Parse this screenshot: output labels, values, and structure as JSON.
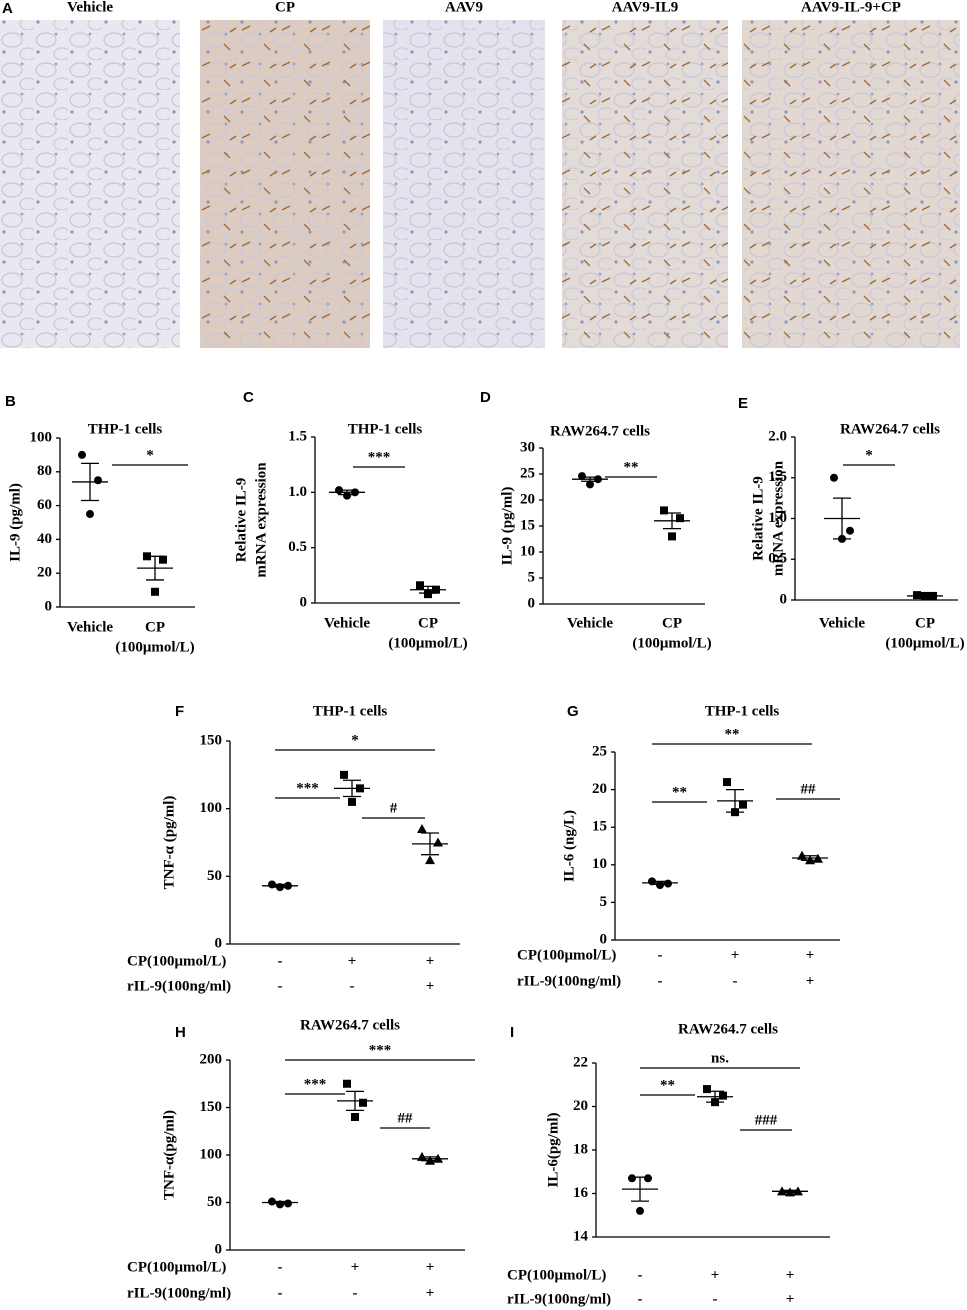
{
  "panel_a": {
    "label": "A",
    "images": [
      "Vehicle",
      "CP",
      "AAV9",
      "AAV9-IL9",
      "AAV9-IL-9+CP"
    ]
  },
  "chart_data": [
    {
      "type": "dotplot",
      "panel": "B",
      "title": "THP-1 cells",
      "ylabel": [
        "IL-9 (pg/ml)"
      ],
      "categories": [
        [
          "Vehicle"
        ],
        [
          "CP",
          "(100μmol/L)"
        ]
      ],
      "points": [
        [
          90,
          75,
          55
        ],
        [
          30,
          28,
          9
        ]
      ],
      "means": [
        74,
        23
      ],
      "errors": [
        11,
        7
      ],
      "ylim": [
        0,
        100
      ],
      "yticks": [
        0,
        20,
        40,
        60,
        80,
        100
      ],
      "annotations": [
        "*"
      ]
    },
    {
      "type": "dotplot",
      "panel": "C",
      "title": "THP-1 cells",
      "ylabel": [
        "Relative IL-9",
        "mRNA expression"
      ],
      "categories": [
        [
          "Vehicle"
        ],
        [
          "CP",
          "(100μmol/L)"
        ]
      ],
      "points": [
        [
          1.02,
          1.0,
          0.97
        ],
        [
          0.16,
          0.12,
          0.08
        ]
      ],
      "means": [
        1.0,
        0.12
      ],
      "errors": [
        0.02,
        0.03
      ],
      "ylim": [
        0,
        1.5
      ],
      "yticks": [
        0,
        0.5,
        {
          "value": 1,
          "label": "1.0"
        },
        1.5
      ],
      "annotations": [
        "***"
      ]
    },
    {
      "type": "dotplot",
      "panel": "D",
      "title": "RAW264.7 cells",
      "ylabel": [
        "IL-9 (pg/ml)"
      ],
      "categories": [
        [
          "Vehicle"
        ],
        [
          "CP",
          "(100μmol/L)"
        ]
      ],
      "points": [
        [
          24.6,
          24,
          23
        ],
        [
          18,
          16.5,
          13
        ]
      ],
      "means": [
        24,
        16
      ],
      "errors": [
        0.4,
        1.5
      ],
      "ylim": [
        0,
        30
      ],
      "yticks": [
        0,
        5,
        10,
        15,
        20,
        25,
        30
      ],
      "annotations": [
        "**"
      ]
    },
    {
      "type": "dotplot",
      "panel": "E",
      "title": "RAW264.7 cells",
      "ylabel": [
        "Relative IL-9",
        "mRNA expression"
      ],
      "categories": [
        [
          "Vehicle"
        ],
        [
          "CP",
          "(100μmol/L)"
        ]
      ],
      "points": [
        [
          1.5,
          0.85,
          0.75
        ],
        [
          0.06,
          0.05,
          0.05
        ]
      ],
      "means": [
        1.0,
        0.05
      ],
      "errors": [
        0.25,
        0.01
      ],
      "ylim": [
        0,
        2
      ],
      "yticks": [
        0,
        0.5,
        {
          "value": 1,
          "label": "1.0"
        },
        1.5,
        {
          "value": 2,
          "label": "2.0"
        }
      ],
      "annotations": [
        "*"
      ]
    },
    {
      "type": "dotplot",
      "panel": "F",
      "title": "THP-1 cells",
      "ylabel": [
        "TNF-α (pg/ml)"
      ],
      "conditions": [
        {
          "label": "CP(100μmol/L)",
          "marks": [
            "-",
            "+",
            "+"
          ]
        },
        {
          "label": "rIL-9(100ng/ml)",
          "marks": [
            "-",
            "-",
            "+"
          ]
        }
      ],
      "points": [
        [
          44,
          43,
          42
        ],
        [
          125,
          115,
          105
        ],
        [
          85,
          75,
          62
        ]
      ],
      "means": [
        43,
        115,
        74
      ],
      "errors": [
        1,
        6,
        8
      ],
      "ylim": [
        0,
        150
      ],
      "yticks": [
        0,
        50,
        100,
        150
      ],
      "annotations": [
        "***",
        "#",
        "*"
      ]
    },
    {
      "type": "dotplot",
      "panel": "G",
      "title": "THP-1 cells",
      "ylabel": [
        "IL-6 (ng/L)"
      ],
      "conditions": [
        {
          "label": "CP(100μmol/L)",
          "marks": [
            "-",
            "+",
            "+"
          ]
        },
        {
          "label": "rIL-9(100ng/ml)",
          "marks": [
            "-",
            "-",
            "+"
          ]
        }
      ],
      "points": [
        [
          7.8,
          7.5,
          7.3
        ],
        [
          21,
          18,
          17
        ],
        [
          11.2,
          10.8,
          10.6
        ]
      ],
      "means": [
        7.6,
        18.5,
        10.9
      ],
      "errors": [
        0.2,
        1.5,
        0.3
      ],
      "ylim": [
        0,
        25
      ],
      "yticks": [
        0,
        5,
        10,
        15,
        20,
        25
      ],
      "annotations": [
        "**",
        "##",
        "**"
      ]
    },
    {
      "type": "dotplot",
      "panel": "H",
      "title": "RAW264.7 cells",
      "ylabel": [
        "TNF-α(pg/ml)"
      ],
      "conditions": [
        {
          "label": "CP(100μmol/L)",
          "marks": [
            "-",
            "+",
            "+"
          ]
        },
        {
          "label": "rIL-9(100ng/ml)",
          "marks": [
            "-",
            "-",
            "+"
          ]
        }
      ],
      "points": [
        [
          51,
          49,
          48
        ],
        [
          175,
          155,
          140
        ],
        [
          98,
          96,
          94
        ]
      ],
      "means": [
        50,
        157,
        96
      ],
      "errors": [
        1,
        10,
        2
      ],
      "ylim": [
        0,
        200
      ],
      "yticks": [
        0,
        50,
        100,
        150,
        200
      ],
      "annotations": [
        "***",
        "##",
        "***"
      ]
    },
    {
      "type": "dotplot",
      "panel": "I",
      "title": "RAW264.7 cells",
      "ylabel": [
        "IL-6(pg/ml)"
      ],
      "conditions": [
        {
          "label": "CP(100μmol/L)",
          "marks": [
            "-",
            "+",
            "+"
          ]
        },
        {
          "label": "rIL-9(100ng/ml)",
          "marks": [
            "-",
            "-",
            "+"
          ]
        }
      ],
      "points": [
        [
          16.7,
          16.7,
          15.2
        ],
        [
          20.8,
          20.5,
          20.2
        ],
        [
          16.1,
          16.1,
          16.05
        ]
      ],
      "means": [
        16.2,
        20.45,
        16.1
      ],
      "errors": [
        0.55,
        0.25,
        0.05
      ],
      "ylim": [
        14,
        22
      ],
      "yticks": [
        14,
        16,
        18,
        20,
        22
      ],
      "annotations": [
        "**",
        "###",
        "ns."
      ]
    }
  ]
}
